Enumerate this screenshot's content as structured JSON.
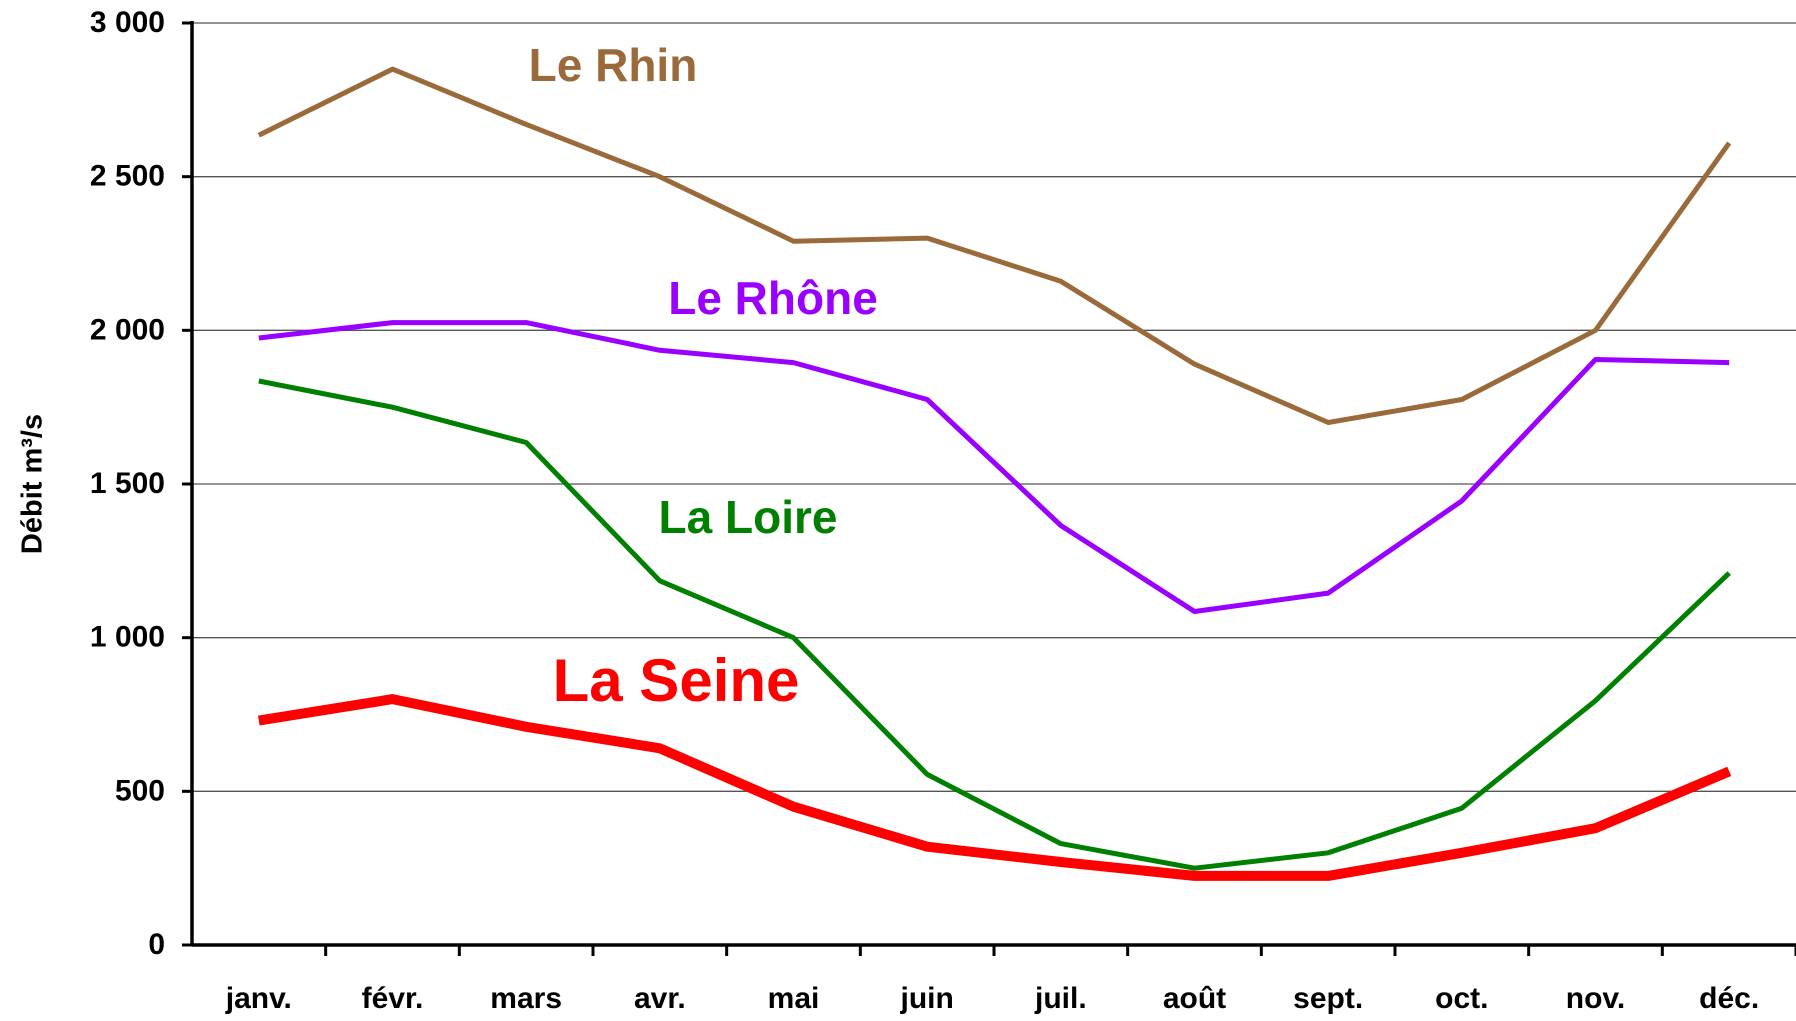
{
  "chart_data": {
    "type": "line",
    "ylabel": "Débit m³/s",
    "categories": [
      "janv.",
      "févr.",
      "mars",
      "avr.",
      "mai",
      "juin",
      "juil.",
      "août",
      "sept.",
      "oct.",
      "nov.",
      "déc."
    ],
    "series": [
      {
        "name": "Le Rhin",
        "color": "#9b6a3a",
        "values": [
          2635,
          2850,
          2670,
          2500,
          2290,
          2300,
          2160,
          1890,
          1700,
          1775,
          2000,
          2610
        ]
      },
      {
        "name": "Le Rhône",
        "color": "#9900ff",
        "values": [
          1975,
          2025,
          2025,
          1935,
          1895,
          1775,
          1365,
          1085,
          1145,
          1445,
          1905,
          1895
        ]
      },
      {
        "name": "La Loire",
        "color": "#008000",
        "values": [
          1835,
          1750,
          1635,
          1185,
          1000,
          555,
          330,
          250,
          300,
          445,
          795,
          1210
        ]
      },
      {
        "name": "La Seine",
        "color": "#ff0000",
        "values": [
          730,
          800,
          710,
          640,
          450,
          320,
          270,
          225,
          225,
          300,
          380,
          565
        ]
      }
    ],
    "ylim": [
      0,
      3000
    ],
    "yticks": [
      0,
      {
        "value": 500,
        "label": "500"
      },
      {
        "value": 1000,
        "label": "1 000"
      },
      {
        "value": 1500,
        "label": "1 500"
      },
      {
        "value": 2000,
        "label": "2 000"
      },
      {
        "value": 2500,
        "label": "2 500"
      },
      {
        "value": 3000,
        "label": "3 000"
      }
    ],
    "grid": true
  }
}
